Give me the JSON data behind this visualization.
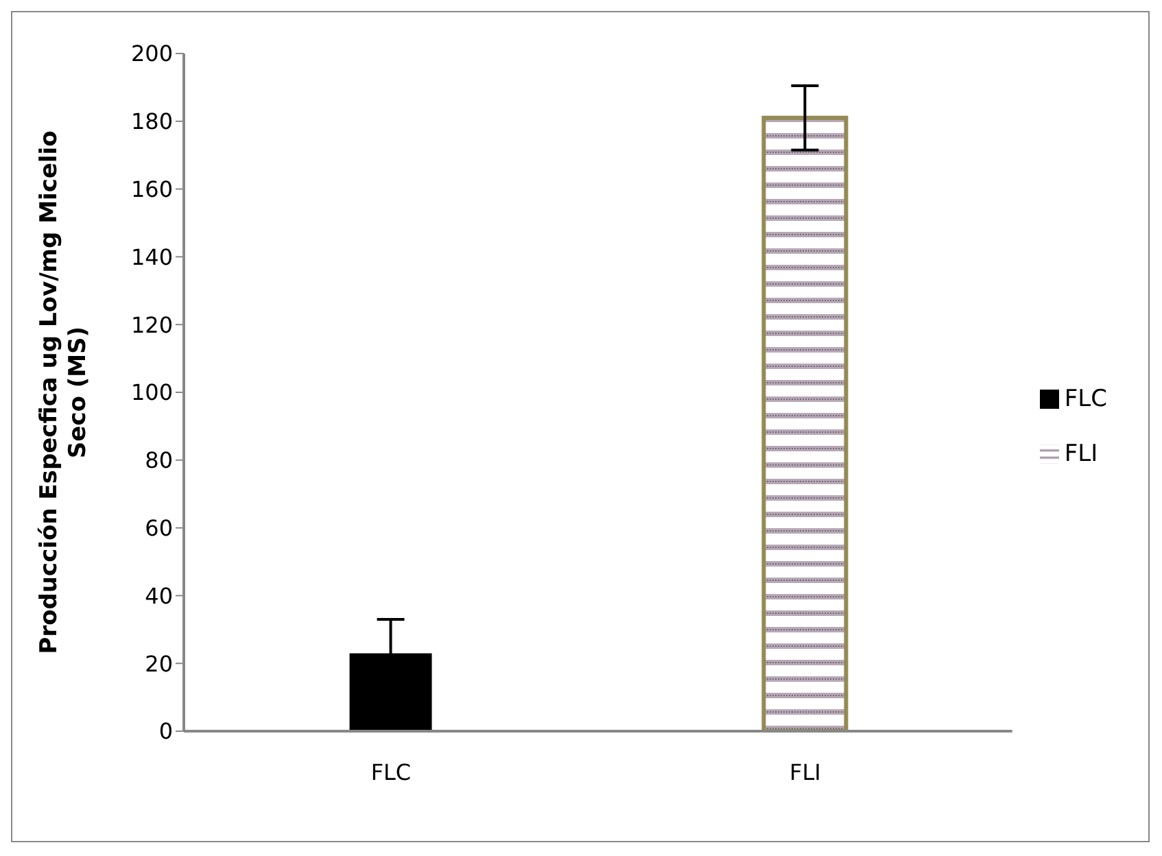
{
  "chart_data": {
    "type": "bar",
    "ylabel": "Producción Especfica ug Lov/mg Micelio Seco (MS)",
    "categories": [
      "FLC",
      "FLI"
    ],
    "stacked": true,
    "series": [
      {
        "name": "FLC",
        "color": "#000000",
        "values": [
          23,
          null
        ],
        "errors": [
          10,
          null
        ]
      },
      {
        "name": "FLI",
        "color": "#948a54",
        "values": [
          null,
          181
        ],
        "errors": [
          null,
          9.5
        ]
      }
    ],
    "ylim": [
      0,
      200
    ],
    "yticks": [
      0,
      20,
      40,
      60,
      80,
      100,
      120,
      140,
      160,
      180,
      200
    ],
    "grid": false,
    "legend": "right"
  }
}
